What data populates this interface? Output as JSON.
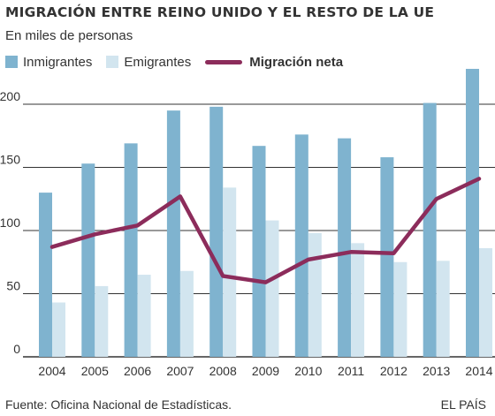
{
  "header": {
    "title": "MIGRACIÓN ENTRE REINO UNIDO Y EL RESTO DE LA UE",
    "subtitle": "En miles de personas"
  },
  "legend": {
    "immigrants": "Inmigrantes",
    "emigrants": "Emigrantes",
    "net": "Migración neta"
  },
  "colors": {
    "immigrants": "#7fb3cf",
    "emigrants": "#d2e5ef",
    "net": "#8c2c5b",
    "grid": "#333333"
  },
  "chart_data": {
    "type": "bar",
    "categories": [
      "2004",
      "2005",
      "2006",
      "2007",
      "2008",
      "2009",
      "2010",
      "2011",
      "2012",
      "2013",
      "2014"
    ],
    "series": [
      {
        "name": "Inmigrantes",
        "type": "bar",
        "values": [
          130,
          153,
          169,
          195,
          198,
          167,
          176,
          173,
          158,
          201,
          228
        ]
      },
      {
        "name": "Emigrantes",
        "type": "bar",
        "values": [
          43,
          56,
          65,
          68,
          134,
          108,
          98,
          90,
          75,
          76,
          86
        ]
      },
      {
        "name": "Migración neta",
        "type": "line",
        "values": [
          87,
          97,
          104,
          127,
          64,
          59,
          77,
          83,
          82,
          125,
          141
        ]
      }
    ],
    "yticks": [
      0,
      50,
      100,
      150,
      200
    ],
    "ylim": [
      0,
      230
    ],
    "grid": true,
    "legend_position": "top-left"
  },
  "footer": {
    "source": "Fuente: Oficina Nacional de Estadísticas.",
    "brand": "EL PAÍS"
  }
}
